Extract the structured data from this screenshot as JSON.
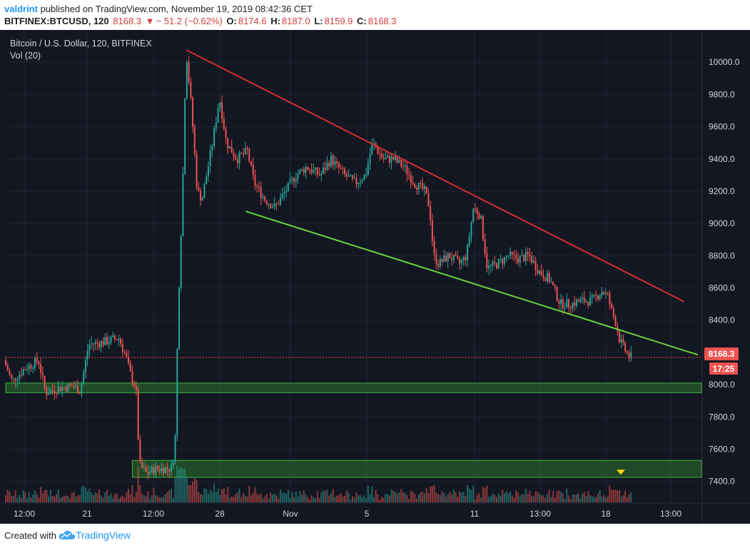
{
  "header": {
    "author": "valdrint",
    "published_text": "published on TradingView.com, November 19, 2019 08:42:36 CET",
    "symbol": "BITFINEX:BTCUSD, 120",
    "last": "8168.3",
    "change": "− 51.2 (−0.62%)",
    "o_label": "O:",
    "o_value": "8174.6",
    "h_label": "H:",
    "h_value": "8187.0",
    "l_label": "L:",
    "l_value": "8159.9",
    "c_label": "C:",
    "c_value": "8168.3"
  },
  "legend": {
    "title": "Bitcoin / U.S. Dollar, 120, BITFINEX",
    "indicator": "Vol (20)"
  },
  "price_label": "8168.3",
  "countdown_label": "17:25",
  "footer": {
    "created_with": "Created with",
    "brand": "TradingView"
  },
  "colors": {
    "background": "#131722",
    "grid": "#1f2535",
    "up": "#26a69a",
    "down": "#ef5350",
    "resistance": "#d32f2f",
    "support": "#6ad23a",
    "zone": "#2f8a2f",
    "price_tag": "#ef5350",
    "marker": "#ffd600",
    "axis_text": "#d1d4dc"
  },
  "chart_data": {
    "type": "candlestick",
    "title": "Bitcoin / U.S. Dollar, 120, BITFINEX",
    "ylim": [
      7270,
      10200
    ],
    "y_ticks": [
      7400,
      7600,
      7800,
      8000,
      8200,
      8400,
      8600,
      8800,
      9000,
      9200,
      9400,
      9600,
      9800,
      10000
    ],
    "y_tick_labels": [
      "7400.0",
      "7600.0",
      "7800.0",
      "8000.0",
      "8200.0",
      "8400.0",
      "8600.0",
      "8800.0",
      "9000.0",
      "9200.0",
      "9400.0",
      "9600.0",
      "9800.0",
      "10000.0"
    ],
    "x_ticks": [
      "12:00",
      "21",
      "12:00",
      "28",
      "Nov",
      "5",
      "11",
      "13:00",
      "18",
      "13:00"
    ],
    "grid": true,
    "last_price": 8168.3,
    "trendlines": [
      {
        "name": "resistance",
        "points": [
          [
            0.26,
            10075
          ],
          [
            0.975,
            8515
          ]
        ]
      },
      {
        "name": "support",
        "points": [
          [
            0.345,
            9075
          ],
          [
            0.995,
            8185
          ]
        ]
      }
    ],
    "zones": [
      {
        "name": "support-zone-8000",
        "low": 7950,
        "high": 8010,
        "from": 0.0
      },
      {
        "name": "support-zone-7500",
        "low": 7425,
        "high": 7530,
        "from": 0.182
      }
    ],
    "marker": {
      "x": 0.884,
      "y": 7455
    },
    "price_path": [
      [
        0.0,
        8150
      ],
      [
        0.012,
        8020
      ],
      [
        0.03,
        8100
      ],
      [
        0.05,
        8150
      ],
      [
        0.06,
        7950
      ],
      [
        0.08,
        7980
      ],
      [
        0.1,
        7990
      ],
      [
        0.11,
        7960
      ],
      [
        0.122,
        8250
      ],
      [
        0.14,
        8260
      ],
      [
        0.165,
        8290
      ],
      [
        0.175,
        8180
      ],
      [
        0.183,
        8050
      ],
      [
        0.19,
        7980
      ],
      [
        0.195,
        7500
      ],
      [
        0.205,
        7450
      ],
      [
        0.22,
        7480
      ],
      [
        0.242,
        7480
      ],
      [
        0.247,
        7700
      ],
      [
        0.25,
        8400
      ],
      [
        0.257,
        9200
      ],
      [
        0.262,
        10080
      ],
      [
        0.27,
        9700
      ],
      [
        0.278,
        9200
      ],
      [
        0.285,
        9150
      ],
      [
        0.3,
        9500
      ],
      [
        0.31,
        9780
      ],
      [
        0.32,
        9500
      ],
      [
        0.335,
        9400
      ],
      [
        0.35,
        9450
      ],
      [
        0.36,
        9250
      ],
      [
        0.375,
        9150
      ],
      [
        0.39,
        9100
      ],
      [
        0.405,
        9200
      ],
      [
        0.42,
        9300
      ],
      [
        0.435,
        9350
      ],
      [
        0.455,
        9300
      ],
      [
        0.47,
        9400
      ],
      [
        0.49,
        9300
      ],
      [
        0.505,
        9250
      ],
      [
        0.52,
        9300
      ],
      [
        0.53,
        9500
      ],
      [
        0.545,
        9400
      ],
      [
        0.56,
        9400
      ],
      [
        0.575,
        9350
      ],
      [
        0.59,
        9250
      ],
      [
        0.605,
        9200
      ],
      [
        0.612,
        9100
      ],
      [
        0.618,
        8800
      ],
      [
        0.625,
        8750
      ],
      [
        0.64,
        8800
      ],
      [
        0.655,
        8750
      ],
      [
        0.665,
        8800
      ],
      [
        0.675,
        9100
      ],
      [
        0.685,
        9050
      ],
      [
        0.695,
        8720
      ],
      [
        0.71,
        8750
      ],
      [
        0.725,
        8800
      ],
      [
        0.74,
        8780
      ],
      [
        0.755,
        8800
      ],
      [
        0.77,
        8700
      ],
      [
        0.785,
        8650
      ],
      [
        0.8,
        8500
      ],
      [
        0.815,
        8500
      ],
      [
        0.83,
        8520
      ],
      [
        0.845,
        8520
      ],
      [
        0.86,
        8580
      ],
      [
        0.868,
        8550
      ],
      [
        0.874,
        8450
      ],
      [
        0.88,
        8380
      ],
      [
        0.885,
        8280
      ],
      [
        0.892,
        8220
      ],
      [
        0.9,
        8168
      ]
    ],
    "volume_note": "Vol (20)"
  }
}
